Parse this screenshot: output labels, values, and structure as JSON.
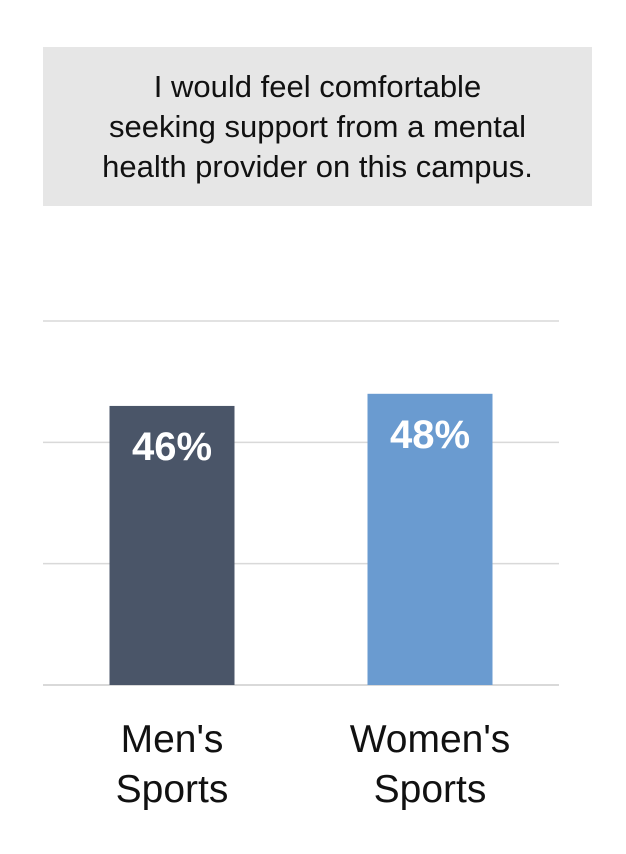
{
  "title": "I would feel comfortable\nseeking support from a mental\nhealth provider on this campus.",
  "chart_data": {
    "type": "bar",
    "title": "I would feel comfortable seeking support from a mental health provider on this campus.",
    "categories": [
      "Men's\nSports",
      "Women's\nSports"
    ],
    "values": [
      46,
      48
    ],
    "value_labels": [
      "46%",
      "48%"
    ],
    "ylim": [
      0,
      60
    ],
    "grid": true,
    "colors": [
      "#4a5568",
      "#6a9bd0"
    ],
    "grid_color": "#d9d9d9",
    "value_label_color": "#ffffff"
  }
}
